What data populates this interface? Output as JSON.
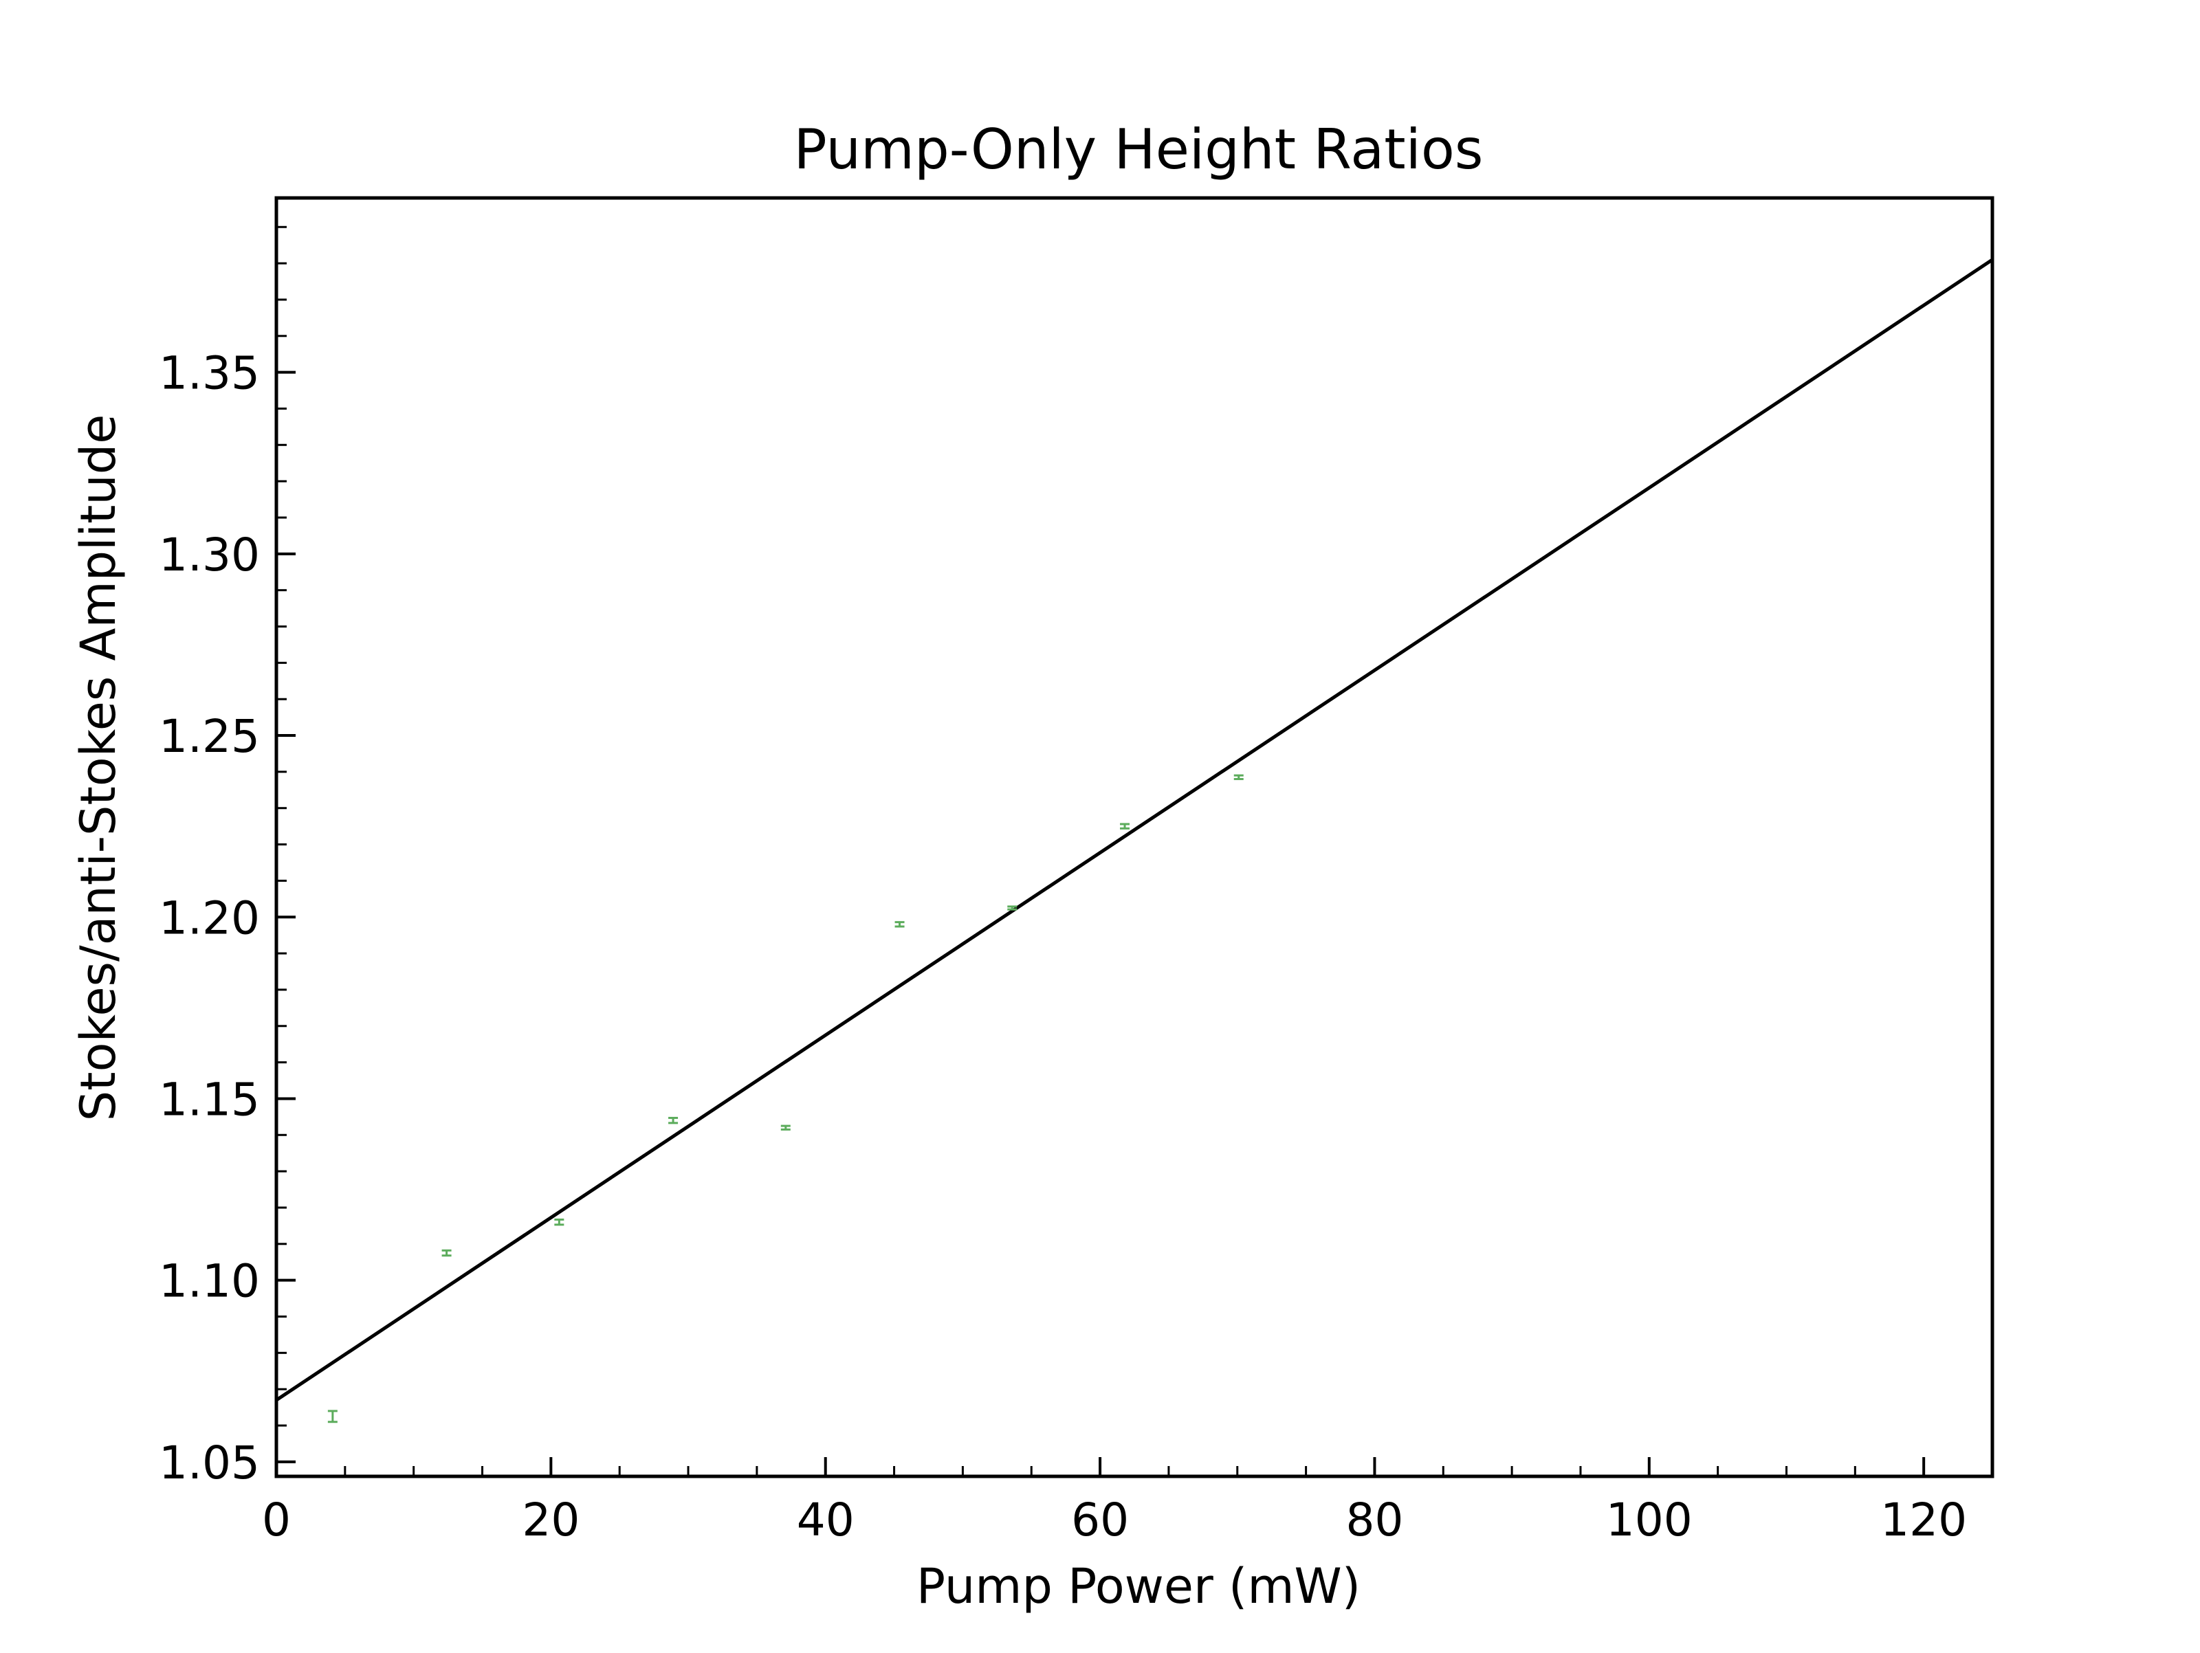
{
  "chart_data": {
    "type": "scatter",
    "title": "Pump-Only Height Ratios",
    "xlabel": "Pump Power (mW)",
    "ylabel": "Stokes/anti-Stokes Amplitude",
    "xlim": [
      0,
      125
    ],
    "ylim": [
      1.046,
      1.398
    ],
    "x_ticks": [
      "0",
      "20",
      "40",
      "60",
      "80",
      "100",
      "120"
    ],
    "y_ticks": [
      "1.05",
      "1.10",
      "1.15",
      "1.20",
      "1.25",
      "1.30",
      "1.35"
    ],
    "grid": false,
    "series": [
      {
        "kind": "errorbar",
        "color": "#5cac5c",
        "x": [
          4.1,
          12.4,
          20.6,
          28.9,
          37.1,
          45.4,
          53.6,
          61.8,
          70.1
        ],
        "y": [
          1.0625,
          1.1075,
          1.116,
          1.144,
          1.142,
          1.198,
          1.2025,
          1.225,
          1.2385
        ],
        "yerr": [
          0.0015,
          0.0007,
          0.0007,
          0.0007,
          0.0005,
          0.0006,
          0.0004,
          0.0006,
          0.0005
        ]
      },
      {
        "kind": "fit-line",
        "color": "#000000",
        "x": [
          0,
          125
        ],
        "y": [
          1.067,
          1.381
        ]
      }
    ]
  }
}
